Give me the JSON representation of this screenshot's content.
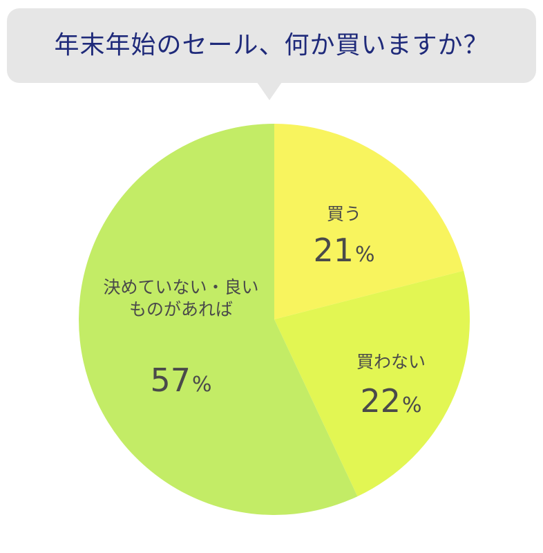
{
  "chart_data": {
    "type": "pie",
    "title": "年末年始のセール、何か買いますか？",
    "unit": "%",
    "slices": [
      {
        "label_lines": [
          "買う"
        ],
        "value": 21,
        "color": "#f8f45e"
      },
      {
        "label_lines": [
          "買わない"
        ],
        "value": 22,
        "color": "#e2f653"
      },
      {
        "label_lines": [
          "決めていない・良い",
          "ものがあれば"
        ],
        "value": 57,
        "color": "#c3ec66"
      }
    ],
    "start": "top",
    "direction": "clockwise"
  }
}
